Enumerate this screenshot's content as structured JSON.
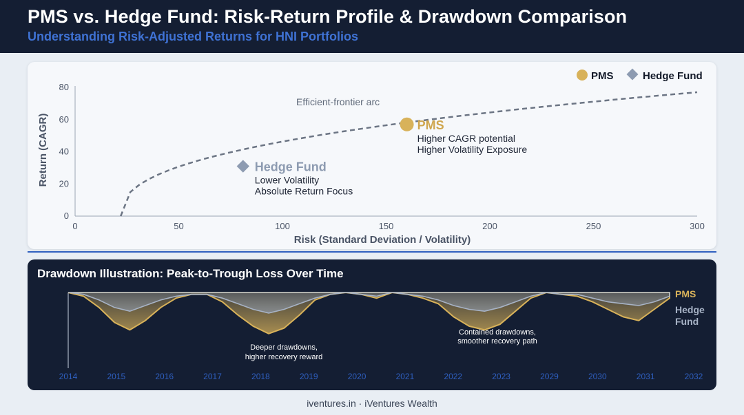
{
  "header": {
    "title": "PMS vs. Hedge Fund: Risk-Return Profile & Drawdown Comparison",
    "subtitle": "Understanding Risk-Adjusted Returns for HNI Portfolios"
  },
  "colors": {
    "header_bg": "#141e33",
    "accent_blue": "#3f72d4",
    "pms_gold": "#d8b25a",
    "hedge_grey": "#8d9bb1"
  },
  "chart_data": [
    {
      "type": "scatter",
      "title": "",
      "xlabel": "Risk (Standard Deviation / Volatility)",
      "ylabel": "Return (CAGR)",
      "xlim": [
        0,
        300
      ],
      "ylim": [
        0,
        80
      ],
      "x_ticks": [
        0,
        50,
        100,
        150,
        200,
        250,
        300
      ],
      "y_ticks": [
        0,
        20,
        40,
        60,
        80
      ],
      "grid": false,
      "legend_position": "top-right",
      "legend": [
        {
          "name": "PMS",
          "marker": "circle"
        },
        {
          "name": "Hedge Fund",
          "marker": "diamond"
        }
      ],
      "points": [
        {
          "name": "PMS",
          "x": 160,
          "y": 57,
          "lines": [
            "Higher CAGR potential",
            "Higher Volatility Exposure"
          ]
        },
        {
          "name": "Hedge Fund",
          "x": 81,
          "y": 31,
          "lines": [
            "Lower Volatility",
            "Absolute Return Focus"
          ]
        }
      ],
      "frontier": {
        "label": "Efficient-frontier arc",
        "x_start": 22,
        "x_end": 300,
        "y_end": 77,
        "shape": "concave"
      }
    },
    {
      "type": "area",
      "title": "Drawdown Illustration: Peak-to-Trough Loss Over Time",
      "x_ticks": [
        "2014",
        "2015",
        "2016",
        "2017",
        "2018",
        "2019",
        "2020",
        "2021",
        "2022",
        "2023",
        "2029",
        "2030",
        "2031",
        "2032"
      ],
      "ylim": [
        -25,
        0
      ],
      "series": [
        {
          "name": "PMS",
          "values": [
            0,
            -2,
            -8,
            -16,
            -20,
            -15,
            -8,
            -3,
            -1,
            -1,
            -5,
            -12,
            -18,
            -22,
            -19,
            -12,
            -4,
            -1,
            0,
            -1,
            -3,
            0,
            -1,
            -3,
            -6,
            -13,
            -18,
            -20,
            -17,
            -10,
            -3,
            0,
            -1,
            -2,
            -5,
            -9,
            -13,
            -15,
            -9,
            -3
          ]
        },
        {
          "name": "Hedge Fund",
          "values": [
            0,
            -1,
            -4,
            -8,
            -10,
            -7,
            -4,
            -2,
            -1,
            -1,
            -3,
            -6,
            -9,
            -11,
            -9,
            -6,
            -3,
            -1,
            0,
            -1,
            -2,
            0,
            -1,
            -2,
            -4,
            -7,
            -9,
            -10,
            -8,
            -5,
            -2,
            0,
            -1,
            -1,
            -3,
            -5,
            -6,
            -7,
            -5,
            -2
          ]
        }
      ],
      "annotations": [
        {
          "lines": [
            "Deeper drawdowns,",
            "higher recovery reward"
          ]
        },
        {
          "lines": [
            "Contained drawdowns,",
            "smoother recovery path"
          ]
        }
      ]
    }
  ],
  "footer": "iventures.in · iVentures Wealth"
}
